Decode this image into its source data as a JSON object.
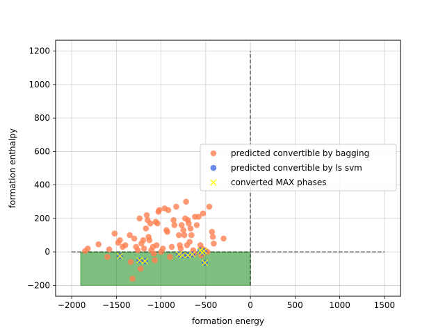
{
  "chart_data": {
    "type": "scatter",
    "title": "",
    "xlabel": "formation energy",
    "ylabel": "formation enthalpy",
    "xlim": [
      -2180,
      1680
    ],
    "ylim": [
      -265,
      1265
    ],
    "xticks": [
      -2000,
      -1500,
      -1000,
      -500,
      0,
      500,
      1000,
      1500
    ],
    "yticks": [
      -200,
      0,
      200,
      400,
      600,
      800,
      1000,
      1200
    ],
    "grid": true,
    "legend_position": "center-right",
    "shaded_region": {
      "x": [
        -1900,
        0
      ],
      "y": [
        -200,
        0
      ],
      "color": "#008000"
    },
    "reference_lines": [
      {
        "orientation": "horizontal",
        "value": 0,
        "x_range": [
          -2000,
          1500
        ],
        "style": "dashed"
      },
      {
        "orientation": "vertical",
        "value": 0,
        "y_range": [
          -200,
          1200
        ],
        "style": "dashed"
      }
    ],
    "series": [
      {
        "name": "predicted convertible by bagging",
        "marker": "circle",
        "color": "#FF7F50",
        "points": [
          [
            -1850,
            5
          ],
          [
            -1820,
            20
          ],
          [
            -1700,
            45
          ],
          [
            -1600,
            -30
          ],
          [
            -1580,
            15
          ],
          [
            -1520,
            110
          ],
          [
            -1480,
            55
          ],
          [
            -1460,
            70
          ],
          [
            -1430,
            30
          ],
          [
            -1400,
            40
          ],
          [
            -1350,
            100
          ],
          [
            -1340,
            -60
          ],
          [
            -1320,
            -160
          ],
          [
            -1300,
            80
          ],
          [
            -1280,
            30
          ],
          [
            -1260,
            10
          ],
          [
            -1240,
            200
          ],
          [
            -1230,
            -100
          ],
          [
            -1220,
            50
          ],
          [
            -1200,
            70
          ],
          [
            -1190,
            20
          ],
          [
            -1170,
            140
          ],
          [
            -1160,
            220
          ],
          [
            -1150,
            190
          ],
          [
            -1140,
            90
          ],
          [
            -1130,
            70
          ],
          [
            -1120,
            170
          ],
          [
            -1110,
            10
          ],
          [
            -1090,
            30
          ],
          [
            -1080,
            -10
          ],
          [
            -1070,
            -50
          ],
          [
            -1060,
            180
          ],
          [
            -1050,
            40
          ],
          [
            -1040,
            170
          ],
          [
            -1030,
            240
          ],
          [
            -1020,
            250
          ],
          [
            -1000,
            0
          ],
          [
            -980,
            20
          ],
          [
            -960,
            260
          ],
          [
            -940,
            130
          ],
          [
            -930,
            120
          ],
          [
            -920,
            250
          ],
          [
            -900,
            -30
          ],
          [
            -880,
            30
          ],
          [
            -860,
            190
          ],
          [
            -850,
            160
          ],
          [
            -830,
            270
          ],
          [
            -800,
            100
          ],
          [
            -790,
            40
          ],
          [
            -780,
            20
          ],
          [
            -770,
            160
          ],
          [
            -750,
            130
          ],
          [
            -740,
            100
          ],
          [
            -730,
            200
          ],
          [
            -720,
            300
          ],
          [
            -710,
            40
          ],
          [
            -700,
            190
          ],
          [
            -690,
            170
          ],
          [
            -680,
            60
          ],
          [
            -670,
            140
          ],
          [
            -660,
            100
          ],
          [
            -640,
            10
          ],
          [
            -630,
            -10
          ],
          [
            -620,
            210
          ],
          [
            -600,
            160
          ],
          [
            -580,
            210
          ],
          [
            -560,
            40
          ],
          [
            -550,
            -20
          ],
          [
            -540,
            20
          ],
          [
            -530,
            230
          ],
          [
            -510,
            10
          ],
          [
            -480,
            0
          ],
          [
            -460,
            270
          ],
          [
            -430,
            120
          ],
          [
            -420,
            90
          ],
          [
            -410,
            50
          ],
          [
            -300,
            80
          ]
        ]
      },
      {
        "name": "predicted convertible by ls svm",
        "marker": "circle",
        "color": "#4169E1",
        "points": [
          [
            -1460,
            -25
          ],
          [
            -1240,
            -50
          ],
          [
            -1180,
            -55
          ],
          [
            -800,
            -15
          ],
          [
            -760,
            -20
          ],
          [
            -700,
            -20
          ],
          [
            -650,
            -15
          ],
          [
            -560,
            10
          ],
          [
            -540,
            -5
          ],
          [
            -520,
            5
          ],
          [
            -510,
            -65
          ]
        ]
      },
      {
        "name": "converted MAX phases",
        "marker": "x",
        "color": "#FFFF00",
        "points": [
          [
            -1460,
            -25
          ],
          [
            -1240,
            -50
          ],
          [
            -1180,
            -55
          ],
          [
            -800,
            -15
          ],
          [
            -760,
            -20
          ],
          [
            -700,
            -20
          ],
          [
            -650,
            -15
          ],
          [
            -560,
            10
          ],
          [
            -540,
            -5
          ],
          [
            -520,
            5
          ],
          [
            -510,
            -65
          ]
        ]
      }
    ]
  }
}
